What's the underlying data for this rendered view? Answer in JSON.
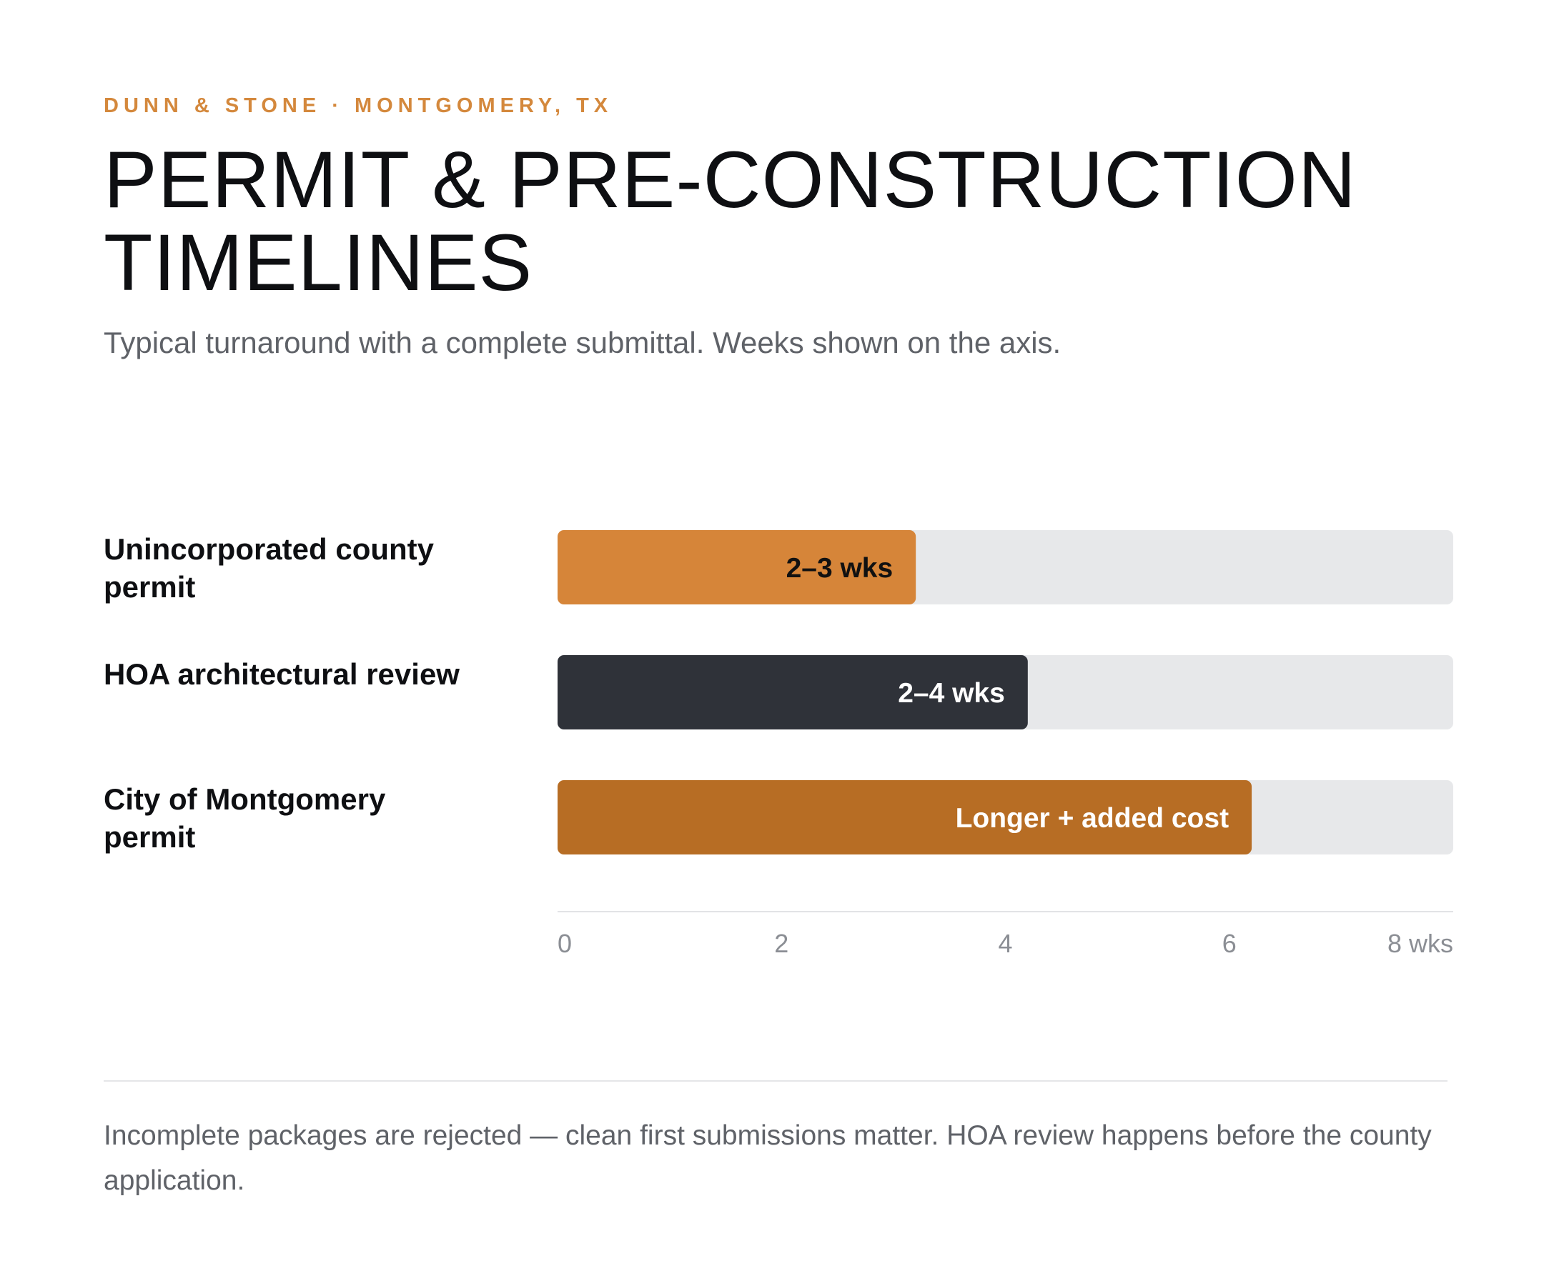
{
  "header": {
    "eyebrow": "DUNN & STONE · MONTGOMERY, TX",
    "title_line1": "PERMIT & PRE-CONSTRUCTION",
    "title_line2": "TIMELINES",
    "subtitle": "Typical turnaround with a complete submittal. Weeks shown on the axis."
  },
  "chart_data": {
    "type": "bar",
    "orientation": "horizontal",
    "categories": [
      "Unincorporated county permit",
      "HOA architectural review",
      "City of Montgomery permit"
    ],
    "values": [
      3.2,
      4.2,
      6.2
    ],
    "bar_labels": [
      "2–3 wks",
      "2–4 wks",
      "Longer + added cost"
    ],
    "colors": [
      "#d68539",
      "#2f3239",
      "#b76d24"
    ],
    "label_colors": [
      "#111111",
      "#ffffff",
      "#ffffff"
    ],
    "track_color": "#e7e8ea",
    "xlim": [
      0,
      8
    ],
    "x_ticks": [
      0,
      2,
      4,
      6,
      8
    ],
    "x_tick_labels": [
      "0",
      "2",
      "4",
      "6",
      "8 wks"
    ],
    "grid": false,
    "legend": "none"
  },
  "footer": {
    "note": "Incomplete packages are rejected — clean first submissions matter. HOA review happens before the county application."
  },
  "colors": {
    "accent": "#d4883c",
    "text": "#0e0f12",
    "muted": "#5f6268"
  }
}
